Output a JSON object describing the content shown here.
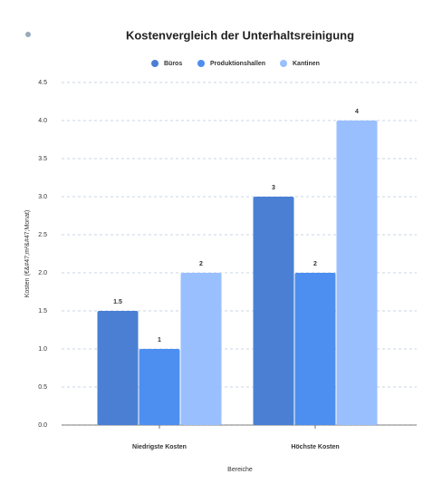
{
  "chart_data": {
    "type": "bar",
    "title": "Kostenvergleich der Unterhaltsreinigung",
    "x_label": "Bereiche",
    "y_label": "Kosten (€&#47;m²&#47;Monat)",
    "categories": [
      "Niedrigste Kosten",
      "Höchste Kosten"
    ],
    "series": [
      {
        "name": "Büros",
        "color": "#4a7fd4",
        "values": [
          1.5,
          3
        ]
      },
      {
        "name": "Produktionshallen",
        "color": "#4d8ff0",
        "values": [
          1,
          2
        ]
      },
      {
        "name": "Kantinen",
        "color": "#99bfff",
        "values": [
          2,
          4
        ]
      }
    ],
    "ylim": [
      0,
      4.5
    ],
    "yticks": [
      {
        "value": 0,
        "label": "0.0"
      },
      {
        "value": 0.5,
        "label": "0.5"
      },
      {
        "value": 1,
        "label": "1.0"
      },
      {
        "value": 1.5,
        "label": "1.5"
      },
      {
        "value": 2,
        "label": "2.0"
      },
      {
        "value": 2.5,
        "label": "2.5"
      },
      {
        "value": 3,
        "label": "3.0"
      },
      {
        "value": 3.5,
        "label": "3.5"
      },
      {
        "value": 4,
        "label": "4.0"
      },
      {
        "value": 4.5,
        "label": "4.5"
      }
    ],
    "grid": true,
    "legend": "top"
  }
}
